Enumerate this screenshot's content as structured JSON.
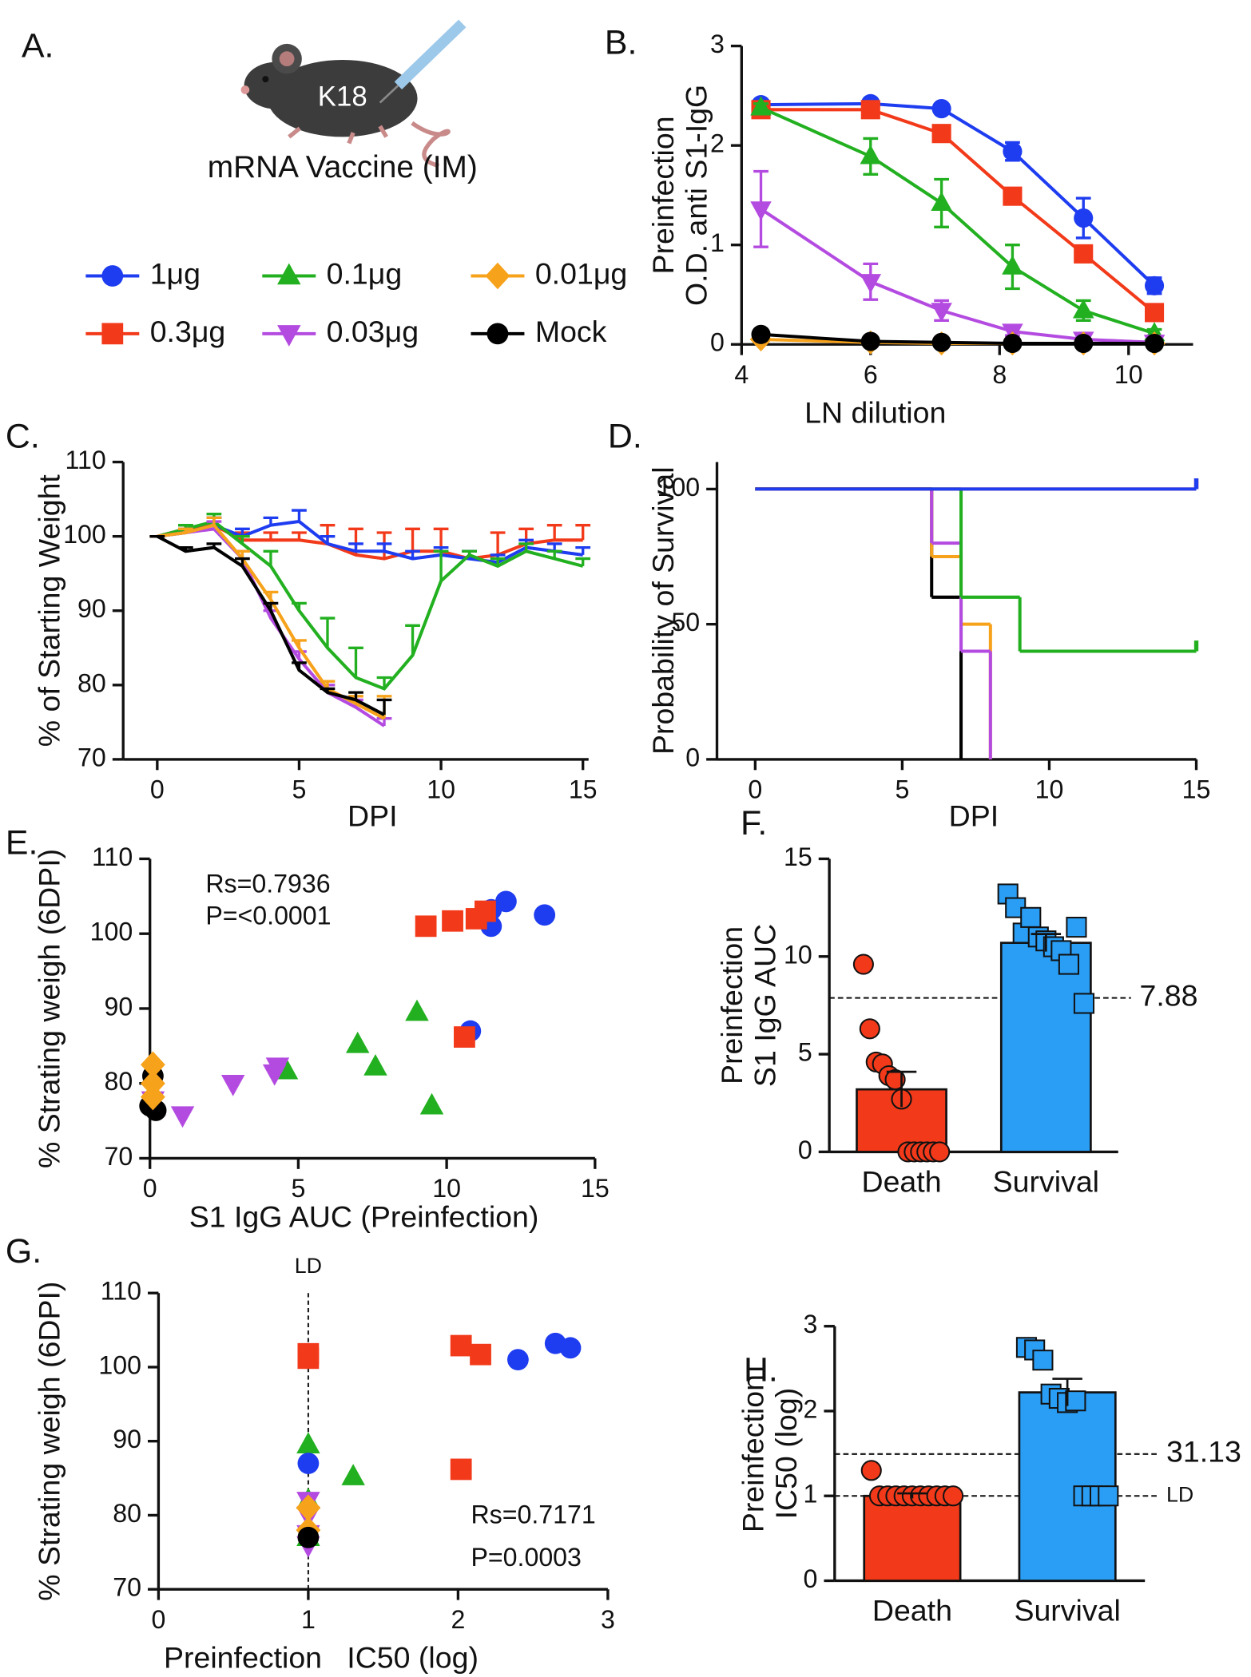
{
  "illustration": {
    "panel_label": "A.",
    "mouse_label": "K18",
    "caption": "mRNA Vaccine (IM)"
  },
  "chart_data": [
    {
      "type": "line",
      "panel_label": "B.",
      "ylabel": [
        "Preinfection",
        "O.D. anti S1-IgG"
      ],
      "xlabel": "LN dilution",
      "x": [
        4.3,
        6,
        7.1,
        8.2,
        9.3,
        10.4
      ],
      "xlim": [
        4,
        11
      ],
      "xticks": [
        4,
        6,
        8,
        10
      ],
      "ylim": [
        0,
        3
      ],
      "yticks": [
        0,
        1,
        2,
        3
      ],
      "markers": true,
      "error_direction": "both",
      "series": [
        {
          "name": "1μg",
          "color": "#1e3cf0",
          "marker": "circle",
          "values": [
            2.41,
            2.42,
            2.37,
            1.94,
            1.27,
            0.59
          ],
          "errors": [
            0.03,
            0.03,
            0.03,
            0.09,
            0.2,
            0.08
          ]
        },
        {
          "name": "0.3μg",
          "color": "#f23a1a",
          "marker": "square",
          "values": [
            2.36,
            2.36,
            2.12,
            1.49,
            0.91,
            0.32
          ],
          "errors": [
            0.03,
            0.03,
            0.04,
            0.08,
            0.08,
            0.04
          ]
        },
        {
          "name": "0.1μg",
          "color": "#22b020",
          "marker": "triangle",
          "values": [
            2.38,
            1.89,
            1.42,
            0.78,
            0.34,
            0.11
          ],
          "errors": [
            0.04,
            0.18,
            0.24,
            0.22,
            0.1,
            0.04
          ]
        },
        {
          "name": "0.03μg",
          "color": "#b44be1",
          "marker": "triangle-down",
          "values": [
            1.36,
            0.63,
            0.34,
            0.13,
            0.05,
            0.02
          ],
          "errors": [
            0.38,
            0.18,
            0.1,
            0.04,
            0.02,
            0.01
          ]
        },
        {
          "name": "0.01μg",
          "color": "#f7a21b",
          "marker": "diamond",
          "values": [
            0.05,
            0.02,
            0.01,
            0.01,
            0.01,
            0.01
          ],
          "errors": [
            0.01,
            0.01,
            0.01,
            0.01,
            0.01,
            0.01
          ]
        },
        {
          "name": "Mock",
          "color": "#000000",
          "marker": "circle",
          "values": [
            0.1,
            0.03,
            0.02,
            0.01,
            0.01,
            0.01
          ],
          "errors": [
            0.01,
            0.01,
            0.01,
            0.01,
            0.01,
            0.01
          ]
        }
      ]
    },
    {
      "type": "line",
      "panel_label": "C.",
      "ylabel": "% of Starting Weight",
      "xlabel": "DPI",
      "x": [
        0,
        1,
        2,
        3,
        4,
        5,
        6,
        7,
        8,
        9,
        10,
        11,
        12,
        13,
        14,
        15
      ],
      "xlim": [
        -1.2,
        15.2
      ],
      "xticks": [
        0,
        5,
        10,
        15
      ],
      "ylim": [
        70,
        110
      ],
      "yticks": [
        70,
        80,
        90,
        100,
        110
      ],
      "markers": false,
      "error_direction": "up",
      "series": [
        {
          "color": "#f23a1a",
          "values": [
            100,
            101,
            101.5,
            99.5,
            99.5,
            99.5,
            99,
            97.5,
            97,
            98,
            98,
            97,
            97.5,
            99,
            99.5,
            99.5
          ],
          "errors": [
            0,
            0.5,
            1,
            1,
            1,
            1,
            2.5,
            3.5,
            3.5,
            3,
            3,
            1,
            3,
            2,
            2,
            2
          ]
        },
        {
          "color": "#1e3cf0",
          "values": [
            100,
            100.5,
            101.5,
            100,
            101.5,
            102,
            99,
            98,
            98,
            97,
            97.5,
            97,
            96.5,
            98.5,
            98,
            97.5
          ],
          "errors": [
            0,
            0.5,
            1,
            1,
            1,
            1.5,
            1,
            1,
            1,
            1,
            1,
            1,
            1,
            1,
            1,
            1
          ]
        },
        {
          "color": "#22b020",
          "values": [
            100,
            101,
            102,
            99,
            96,
            90,
            85,
            81,
            79.5,
            84,
            94,
            97.5,
            96,
            98,
            97,
            96
          ],
          "errors": [
            0,
            0.5,
            1,
            1,
            2,
            1,
            4,
            4,
            1.5,
            4,
            4,
            0.5,
            1,
            1,
            1,
            1
          ]
        },
        {
          "color": "#b44be1",
          "values": [
            100,
            100.5,
            101,
            97,
            89,
            83.5,
            79,
            77,
            74.5,
            null,
            null,
            null,
            null,
            null,
            null,
            null
          ],
          "errors": [
            0,
            0.5,
            1,
            1,
            1,
            1,
            1,
            1,
            1,
            null,
            null,
            null,
            null,
            null,
            null,
            null
          ]
        },
        {
          "color": "#f7a21b",
          "values": [
            100,
            100.5,
            101.5,
            97,
            91.5,
            85,
            79.5,
            77.5,
            75.5,
            null,
            null,
            null,
            null,
            null,
            null,
            null
          ],
          "errors": [
            0,
            0.5,
            1,
            1,
            1,
            1,
            1,
            1,
            3,
            null,
            null,
            null,
            null,
            null,
            null,
            null
          ]
        },
        {
          "color": "#000000",
          "values": [
            100,
            98,
            98.5,
            96,
            90,
            82,
            79,
            78,
            76,
            null,
            null,
            null,
            null,
            null,
            null,
            null
          ],
          "errors": [
            0,
            0.5,
            0.5,
            1,
            1,
            1,
            0.5,
            1,
            2,
            null,
            null,
            null,
            null,
            null,
            null,
            null
          ]
        }
      ]
    },
    {
      "type": "step",
      "panel_label": "D.",
      "ylabel": "Probability of Survival",
      "xlabel": "DPI",
      "xlim": [
        -1.3,
        15
      ],
      "xticks": [
        0,
        5,
        10,
        15
      ],
      "ylim": [
        0,
        110
      ],
      "yticks": [
        0,
        50,
        100
      ],
      "series": [
        {
          "color": "#000000",
          "x": [
            0,
            6,
            7
          ],
          "values": [
            100,
            60,
            0
          ]
        },
        {
          "color": "#f7a21b",
          "x": [
            0,
            6,
            7,
            8
          ],
          "values": [
            100,
            75,
            50,
            0
          ]
        },
        {
          "color": "#b44be1",
          "x": [
            0,
            6,
            7,
            8
          ],
          "values": [
            100,
            80,
            40,
            0
          ]
        },
        {
          "color": "#22b020",
          "x": [
            0,
            7,
            9,
            15
          ],
          "values": [
            100,
            60,
            40,
            40
          ]
        },
        {
          "color": "#f23a1a",
          "x": [
            0,
            15
          ],
          "values": [
            100,
            100
          ]
        },
        {
          "color": "#1e3cf0",
          "x": [
            0,
            15
          ],
          "values": [
            100,
            100
          ]
        }
      ]
    },
    {
      "type": "scatter",
      "panel_label": "E.",
      "ylabel": "% Strating weigh (6DPI)",
      "xlabel": "S1 IgG AUC (Preinfection)",
      "annotations": [
        "Rs=0.7936",
        "P=<0.0001"
      ],
      "xlim": [
        0,
        15
      ],
      "xticks": [
        0,
        5,
        10,
        15
      ],
      "ylim": [
        70,
        110
      ],
      "yticks": [
        70,
        80,
        90,
        100,
        110
      ],
      "series": [
        {
          "color": "#1e3cf0",
          "marker": "circle",
          "x": [
            11.5,
            12,
            11.5,
            13.3,
            10.8
          ],
          "values": [
            103.2,
            104.3,
            101,
            102.5,
            87
          ]
        },
        {
          "color": "#f23a1a",
          "marker": "square",
          "x": [
            9.3,
            10.2,
            11,
            11.3,
            10.6
          ],
          "values": [
            101,
            101.7,
            102,
            103,
            86.2
          ]
        },
        {
          "color": "#22b020",
          "marker": "triangle",
          "x": [
            9,
            7,
            7.6,
            4.6,
            9.5
          ],
          "values": [
            89.5,
            85.2,
            82.2,
            81.7,
            77
          ]
        },
        {
          "color": "#b44be1",
          "marker": "triangle-down",
          "x": [
            4.3,
            4.2,
            2.8,
            1.1,
            0.1
          ],
          "values": [
            82.3,
            81.4,
            80,
            75.8,
            77.8
          ]
        },
        {
          "color": "#000000",
          "marker": "circle",
          "x": [
            0.1,
            0,
            0.2
          ],
          "values": [
            81,
            77,
            76.4
          ]
        },
        {
          "color": "#f7a21b",
          "marker": "diamond",
          "x": [
            0.1,
            0.1,
            0.1
          ],
          "values": [
            82.5,
            80,
            78.2
          ]
        }
      ]
    },
    {
      "type": "bar",
      "panel_label": "F.",
      "ylabel": [
        "Preinfection",
        "S1 IgG AUC"
      ],
      "categories": [
        "Death",
        "Survival"
      ],
      "values": [
        3.2,
        10.7
      ],
      "errors": [
        0.9,
        0.45
      ],
      "colors": [
        "#f23a1a",
        "#2a9df4"
      ],
      "point_markers": [
        "circle",
        "square"
      ],
      "points": [
        [
          9.6,
          6.3,
          4.6,
          4.5,
          3.9,
          3.7,
          2.7,
          0,
          0,
          0,
          0,
          0,
          0
        ],
        [
          13.2,
          12.5,
          11.2,
          12,
          11,
          10.8,
          10.5,
          10.3,
          9.6,
          11.5,
          7.6
        ]
      ],
      "hlines": [
        {
          "value": 7.88,
          "label": "7.88"
        }
      ],
      "ylim": [
        0,
        15
      ],
      "yticks": [
        0,
        5,
        10,
        15
      ]
    },
    {
      "type": "scatter",
      "panel_label": "G.",
      "ylabel": "% Strating weigh (6DPI)",
      "xlabel": "Preinfection   IC50 (log)",
      "annotations": [
        "Rs=0.7171",
        "P=0.0003"
      ],
      "vlines": [
        {
          "value": 1,
          "label": "LD"
        }
      ],
      "xlim": [
        0,
        3
      ],
      "xticks": [
        0,
        1,
        2,
        3
      ],
      "ylim": [
        70,
        110
      ],
      "yticks": [
        70,
        80,
        90,
        100,
        110
      ],
      "series": [
        {
          "color": "#22b020",
          "marker": "triangle",
          "x": [
            1,
            1.3,
            1,
            1
          ],
          "values": [
            89.5,
            85.2,
            82,
            77
          ]
        },
        {
          "color": "#b44be1",
          "marker": "triangle-down",
          "x": [
            1,
            1,
            1,
            1
          ],
          "values": [
            82,
            80,
            77.5,
            76
          ]
        },
        {
          "color": "#f7a21b",
          "marker": "diamond",
          "x": [
            1,
            1
          ],
          "values": [
            81,
            78
          ]
        },
        {
          "color": "#000000",
          "marker": "circle",
          "x": [
            1
          ],
          "values": [
            77
          ]
        },
        {
          "color": "#1e3cf0",
          "marker": "circle",
          "x": [
            2.4,
            2.65,
            2.75,
            1
          ],
          "values": [
            101,
            103.2,
            102.6,
            87
          ]
        },
        {
          "color": "#f23a1a",
          "marker": "square",
          "x": [
            1,
            1,
            2.02,
            2.15,
            2.02
          ],
          "values": [
            101.8,
            101.2,
            102.9,
            101.7,
            86.2
          ]
        }
      ]
    },
    {
      "type": "bar",
      "panel_label": "H.",
      "ylabel": [
        "Preinfection",
        "IC50 (log)"
      ],
      "categories": [
        "Death",
        "Survival"
      ],
      "values": [
        1.0,
        2.22
      ],
      "errors": [
        0.03,
        0.16
      ],
      "colors": [
        "#f23a1a",
        "#2a9df4"
      ],
      "point_markers": [
        "circle",
        "square"
      ],
      "points": [
        [
          1.3,
          1,
          1,
          1,
          1,
          1,
          1,
          1,
          1,
          1,
          1
        ],
        [
          2.75,
          2.72,
          2.6,
          2.2,
          2.15,
          2.1,
          2.12,
          1,
          1,
          1,
          1
        ]
      ],
      "hlines": [
        {
          "value": 1.4932,
          "label": "31.13"
        },
        {
          "value": 1,
          "label": "LD"
        }
      ],
      "ylim": [
        0,
        3
      ],
      "yticks": [
        0,
        1,
        2,
        3
      ]
    }
  ]
}
